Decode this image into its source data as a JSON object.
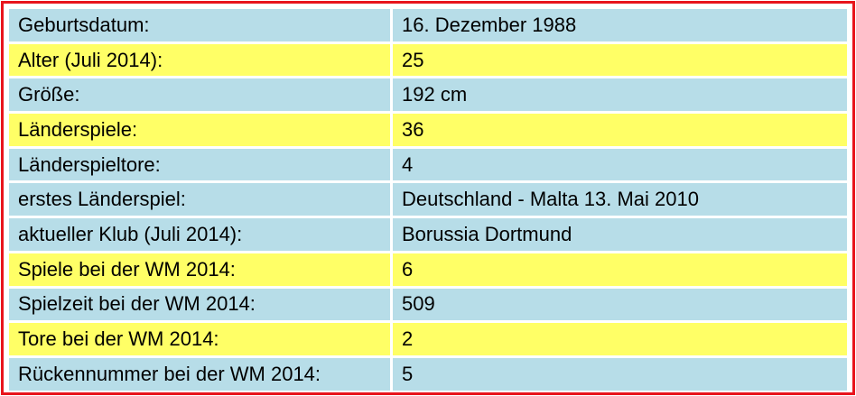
{
  "table": {
    "rows": [
      [
        "Geburtsdatum:",
        "16. Dezember 1988"
      ],
      [
        "Alter (Juli 2014):",
        "25"
      ],
      [
        "Größe:",
        "192 cm"
      ],
      [
        "Länderspiele:",
        "36"
      ],
      [
        "Länderspieltore:",
        "4"
      ],
      [
        "erstes Länderspiel:",
        "Deutschland - Malta 13. Mai 2010"
      ],
      [
        "aktueller Klub (Juli 2014):",
        "Borussia Dortmund"
      ],
      [
        "Spiele bei der WM 2014:",
        "6"
      ],
      [
        "Spielzeit bei der WM 2014:",
        "509"
      ],
      [
        "Tore bei der WM 2014:",
        "2"
      ],
      [
        "Rückennummer bei der WM 2014:",
        "5"
      ]
    ]
  }
}
